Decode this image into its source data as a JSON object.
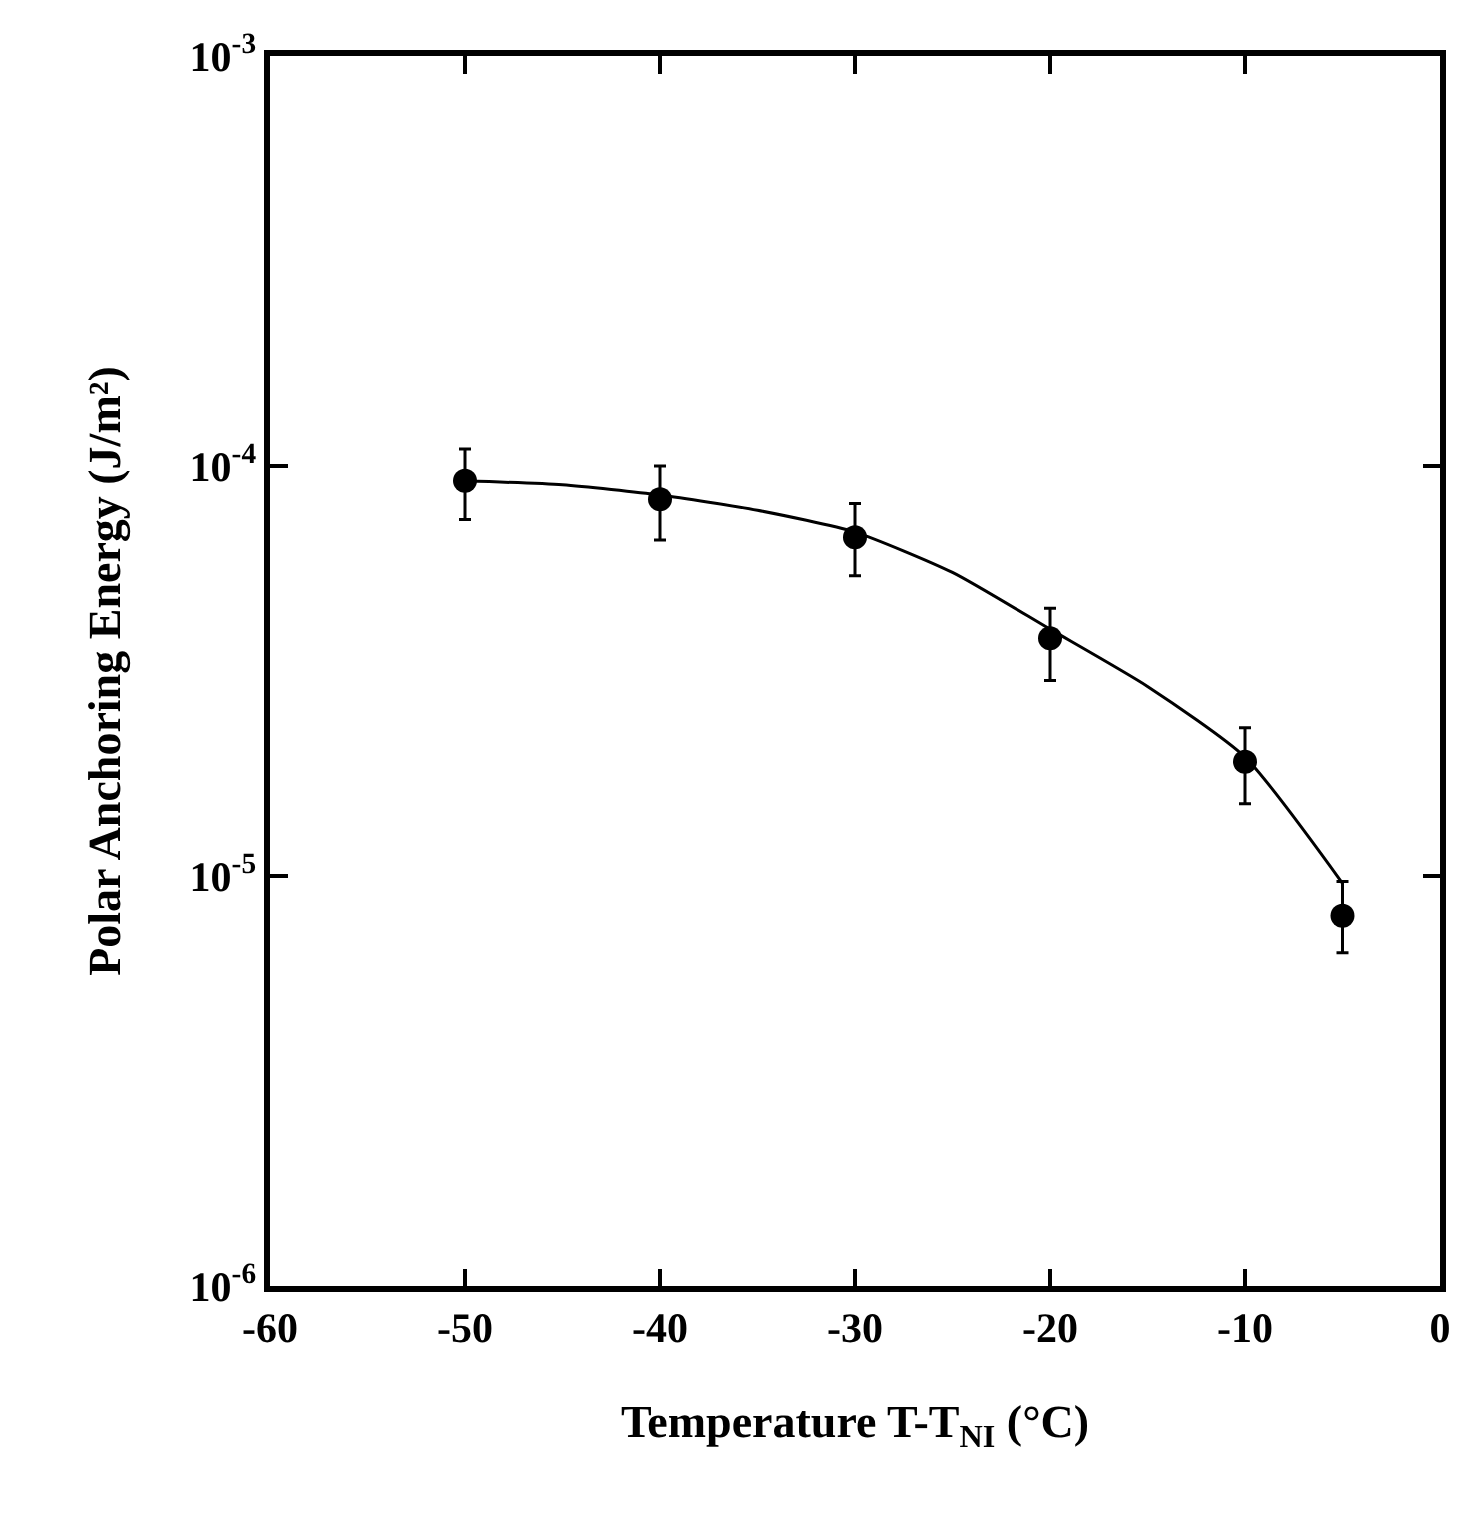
{
  "chart_data": {
    "type": "scatter",
    "xlabel": "Temperature T-T$_{NI}$ (°C)",
    "ylabel": "Polar Anchoring Energy (J/m²)",
    "log": "y",
    "grid": false,
    "marker": "circle",
    "xlim": [
      -60,
      0
    ],
    "xticks": [
      -60,
      -50,
      -40,
      -30,
      -20,
      -10,
      0
    ],
    "ylim": [
      1e-06,
      0.001
    ],
    "yticks": [
      {
        "value": 1e-06,
        "label": "10$^{-6}$"
      },
      {
        "value": 1e-05,
        "label": "10$^{-5}$"
      },
      {
        "value": 0.0001,
        "label": "10$^{-4}$"
      },
      {
        "value": 0.001,
        "label": "10$^{-3}$"
      }
    ],
    "series": [
      {
        "color": "#000000",
        "x": [
          -50,
          -40,
          -30,
          -20,
          -10,
          -5
        ],
        "values": [
          9.2e-05,
          8.3e-05,
          6.7e-05,
          3.8e-05,
          1.9e-05,
          8e-06
        ],
        "errors": [
          [
            7.4e-05,
            0.00011
          ],
          [
            6.6e-05,
            0.0001
          ],
          [
            5.4e-05,
            8.1e-05
          ],
          [
            3e-05,
            4.5e-05
          ],
          [
            1.5e-05,
            2.3e-05
          ],
          [
            6.5e-06,
            9.7e-06
          ]
        ]
      },
      {
        "type": "line",
        "color": "#000000",
        "marker": "none",
        "line_style": "solid",
        "x": [
          -50,
          -45,
          -40,
          -35,
          -30,
          -25,
          -20,
          -15,
          -10,
          -5
        ],
        "values": [
          9.2e-05,
          9e-05,
          8.5e-05,
          7.8e-05,
          6.9e-05,
          5.5e-05,
          4e-05,
          2.9e-05,
          1.95e-05,
          9.6e-06
        ]
      }
    ]
  }
}
